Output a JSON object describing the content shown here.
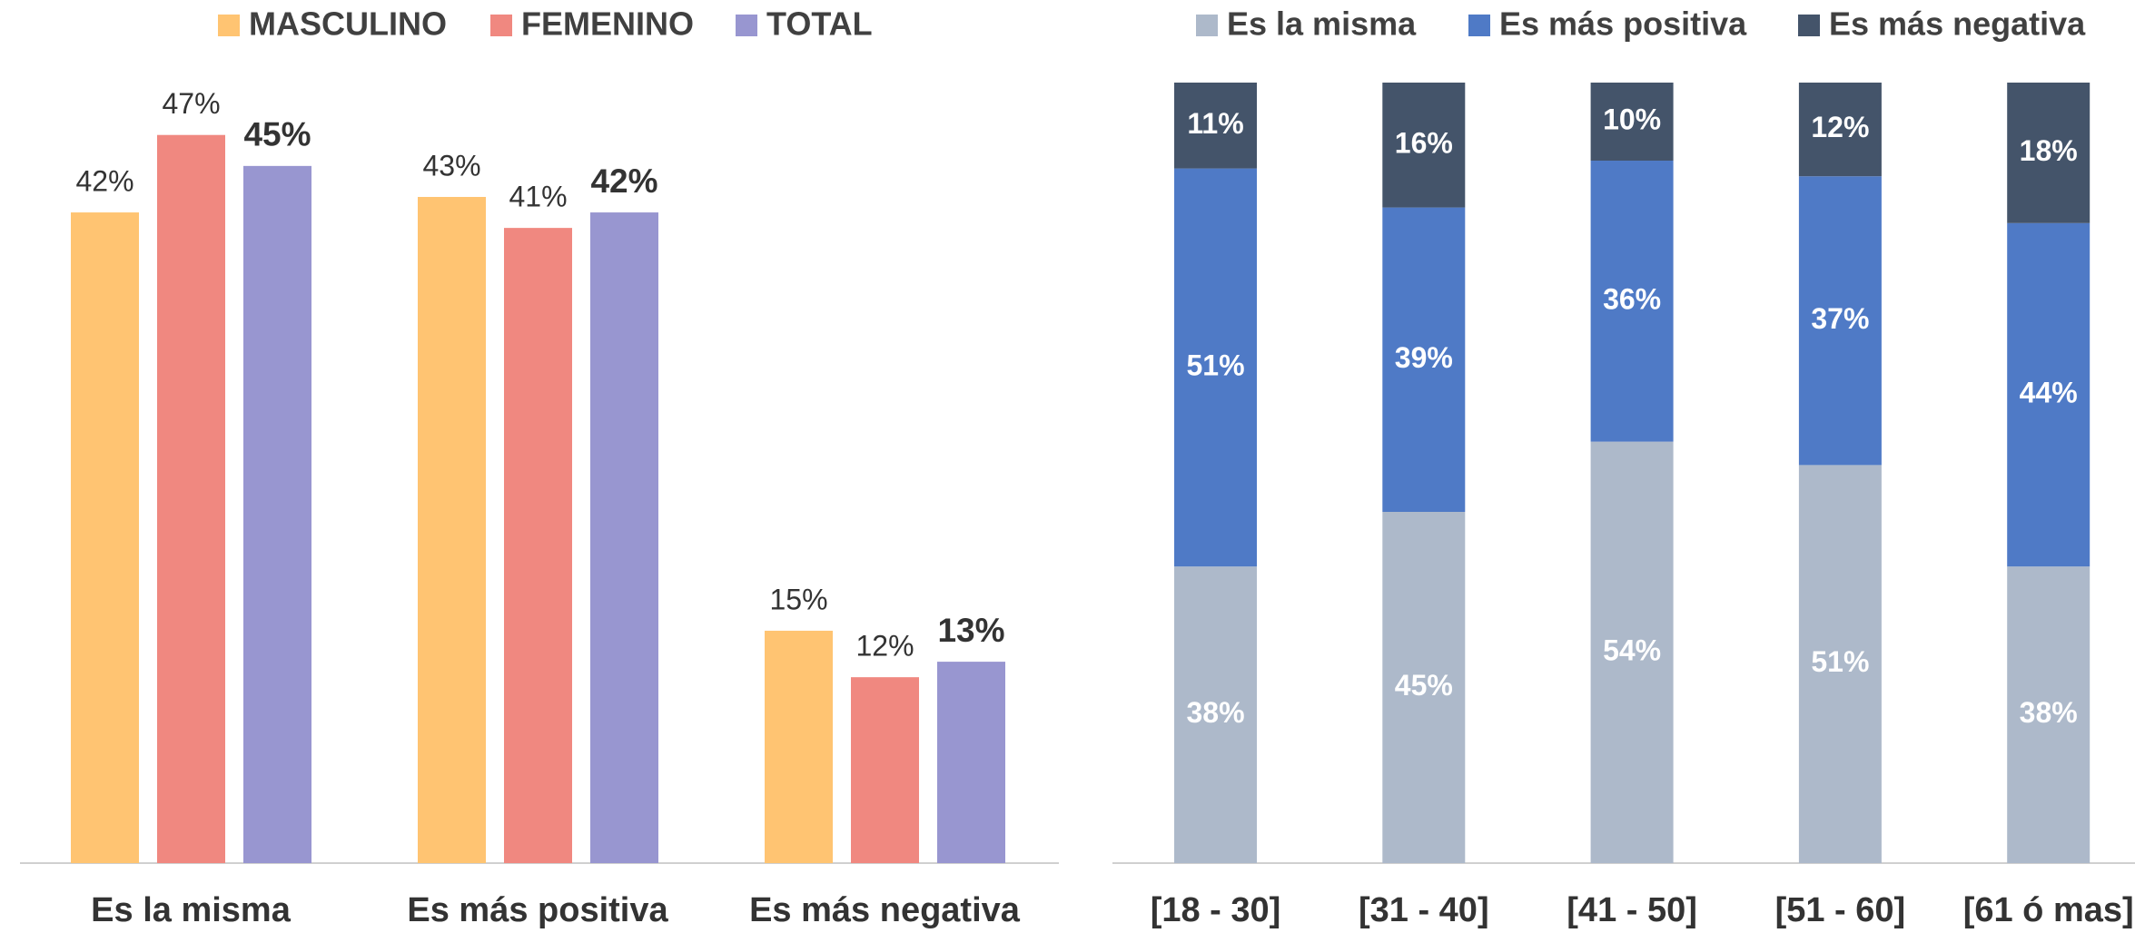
{
  "chart_data": [
    {
      "type": "bar",
      "categories": [
        "Es la misma",
        "Es más positiva",
        "Es más negativa"
      ],
      "series": [
        {
          "name": "MASCULINO",
          "color": "#FFC472",
          "values": [
            42,
            43,
            15
          ],
          "value_labels": [
            "42%",
            "43%",
            "15%"
          ]
        },
        {
          "name": "FEMENINO",
          "color": "#F08880",
          "values": [
            47,
            41,
            12
          ],
          "value_labels": [
            "47%",
            "41%",
            "12%"
          ]
        },
        {
          "name": "TOTAL",
          "color": "#9896D0",
          "values": [
            45,
            42,
            13
          ],
          "value_labels": [
            "45%",
            "42%",
            "13%"
          ],
          "bold_labels": true
        }
      ],
      "legend": "top"
    },
    {
      "type": "stacked_bar",
      "categories": [
        "[18 - 30]",
        "[31 - 40]",
        "[41 - 50]",
        "[51 - 60]",
        "[61 ó mas]"
      ],
      "series": [
        {
          "name": "Es la misma",
          "color": "#ADB9CA",
          "values": [
            38,
            45,
            54,
            51,
            38
          ],
          "value_labels": [
            "38%",
            "45%",
            "54%",
            "51%",
            "38%"
          ]
        },
        {
          "name": "Es más positiva",
          "color": "#4F7AC6",
          "values": [
            51,
            39,
            36,
            37,
            44
          ],
          "value_labels": [
            "51%",
            "39%",
            "36%",
            "37%",
            "44%"
          ]
        },
        {
          "name": "Es más negativa",
          "color": "#44546A",
          "values": [
            11,
            16,
            10,
            12,
            18
          ],
          "value_labels": [
            "11%",
            "16%",
            "10%",
            "12%",
            "18%"
          ]
        }
      ],
      "legend": "top"
    }
  ]
}
